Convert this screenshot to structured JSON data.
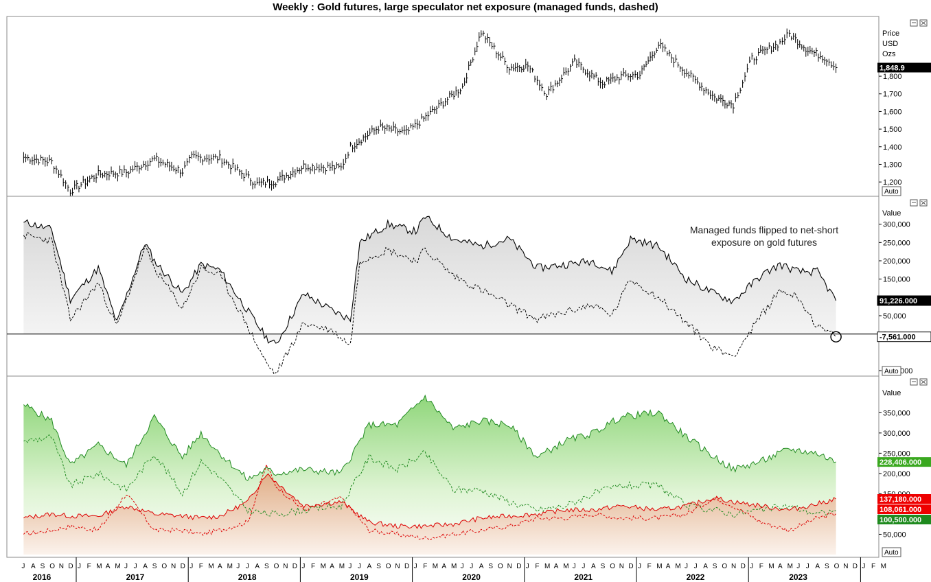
{
  "title": "Weekly : Gold futures, large speculator net exposure (managed funds, dashed)",
  "auto_label": "Auto",
  "annotation": [
    "Managed funds flipped to net-short",
    "exposure on gold futures"
  ],
  "colors": {
    "price": "#000000",
    "net": "#000000",
    "long": "#228b22",
    "short": "#dd0000",
    "zero_line": "#000000"
  },
  "time_axis": {
    "months": [
      "J",
      "A",
      "S",
      "O",
      "N",
      "D",
      "J",
      "F",
      "M",
      "A",
      "M",
      "J",
      "J",
      "A",
      "S",
      "O",
      "N",
      "D",
      "J",
      "F",
      "M",
      "A",
      "M",
      "J",
      "J",
      "A",
      "S",
      "O",
      "N",
      "D",
      "J",
      "F",
      "M",
      "A",
      "M",
      "J",
      "J",
      "A",
      "S",
      "O",
      "N",
      "D",
      "J",
      "F",
      "M",
      "A",
      "M",
      "J",
      "J",
      "A",
      "S",
      "O",
      "N",
      "D",
      "J",
      "F",
      "M",
      "A",
      "M",
      "J",
      "J",
      "A",
      "S",
      "O",
      "N",
      "D",
      "J",
      "F",
      "M",
      "A",
      "M",
      "J",
      "J",
      "A",
      "S",
      "O",
      "N",
      "D",
      "J",
      "F",
      "M",
      "A",
      "M",
      "J",
      "J",
      "A",
      "S",
      "O",
      "N",
      "D",
      "J",
      "F",
      "M"
    ],
    "years": [
      "2016",
      "2017",
      "2018",
      "2019",
      "2020",
      "2021",
      "2022",
      "2023"
    ]
  },
  "panels": {
    "price": {
      "header": [
        "Price",
        "USD",
        "Ozs"
      ],
      "ticks": [
        "1,800",
        "1,700",
        "1,600",
        "1,500",
        "1,400",
        "1,300",
        "1,200"
      ],
      "last_tag": "1,848.9"
    },
    "net": {
      "header": [
        "Value"
      ],
      "ticks": [
        "300,000",
        "250,000",
        "200,000",
        "150,000",
        "50,000",
        "0",
        "-100,000"
      ],
      "tags": [
        "91,226.000",
        "-7,561.000"
      ]
    },
    "positions": {
      "header": [
        "Value"
      ],
      "ticks": [
        "350,000",
        "300,000",
        "250,000",
        "200,000",
        "150,000",
        "50,000"
      ],
      "tags": [
        "228,406.000",
        "137,180.000",
        "108,061.000",
        "100,500.000"
      ]
    }
  },
  "chart_data": [
    {
      "type": "line",
      "title": "Weekly : Gold futures, large speculator net exposure (managed funds, dashed)",
      "x": [
        "2016-07",
        "2016-10",
        "2016-12",
        "2017-03",
        "2017-06",
        "2017-09",
        "2017-12",
        "2018-01",
        "2018-04",
        "2018-08",
        "2018-10",
        "2019-01",
        "2019-05",
        "2019-06",
        "2019-09",
        "2019-12",
        "2020-03",
        "2020-06",
        "2020-08",
        "2020-11",
        "2021-01",
        "2021-03",
        "2021-06",
        "2021-09",
        "2021-11",
        "2022-01",
        "2022-03",
        "2022-06",
        "2022-09",
        "2022-11",
        "2023-01",
        "2023-04",
        "2023-05",
        "2023-07",
        "2023-09",
        "2023-10"
      ],
      "series": [
        {
          "values": [
            1340,
            1315,
            1150,
            1245,
            1255,
            1330,
            1260,
            1340,
            1335,
            1190,
            1205,
            1290,
            1280,
            1400,
            1510,
            1480,
            1610,
            1740,
            2050,
            1850,
            1860,
            1700,
            1880,
            1760,
            1800,
            1810,
            1980,
            1820,
            1680,
            1640,
            1900,
            1990,
            2040,
            1950,
            1900,
            1848.9
          ]
        }
      ],
      "ylim": [
        1150,
        2100
      ]
    },
    {
      "type": "area",
      "x": [
        "2016-07",
        "2016-08",
        "2016-10",
        "2016-12",
        "2017-03",
        "2017-05",
        "2017-08",
        "2017-09",
        "2017-12",
        "2018-02",
        "2018-04",
        "2018-06",
        "2018-09",
        "2018-10",
        "2019-01",
        "2019-04",
        "2019-06",
        "2019-07",
        "2019-10",
        "2020-01",
        "2020-02",
        "2020-05",
        "2020-08",
        "2020-11",
        "2021-02",
        "2021-05",
        "2021-08",
        "2021-10",
        "2021-12",
        "2022-03",
        "2022-06",
        "2022-09",
        "2022-11",
        "2023-02",
        "2023-04",
        "2023-06",
        "2023-08",
        "2023-10"
      ],
      "series": [
        {
          "values": [
            305000,
            300000,
            285000,
            95000,
            180000,
            30000,
            250000,
            200000,
            110000,
            190000,
            175000,
            100000,
            -10000,
            -30000,
            110000,
            65000,
            40000,
            250000,
            300000,
            280000,
            320000,
            260000,
            240000,
            260000,
            180000,
            190000,
            200000,
            170000,
            260000,
            240000,
            150000,
            110000,
            90000,
            160000,
            190000,
            170000,
            170000,
            91226
          ]
        },
        {
          "values": [
            270000,
            265000,
            255000,
            40000,
            140000,
            20000,
            235000,
            180000,
            70000,
            180000,
            160000,
            70000,
            -80000,
            -110000,
            30000,
            10000,
            -30000,
            200000,
            230000,
            200000,
            230000,
            160000,
            120000,
            80000,
            40000,
            60000,
            80000,
            50000,
            150000,
            100000,
            30000,
            -40000,
            -60000,
            50000,
            120000,
            100000,
            20000,
            -7561
          ]
        }
      ],
      "ylim": [
        -100000,
        350000
      ]
    },
    {
      "type": "area",
      "x": [
        "2016-07",
        "2016-10",
        "2016-12",
        "2017-03",
        "2017-06",
        "2017-09",
        "2017-12",
        "2018-02",
        "2018-04",
        "2018-07",
        "2018-09",
        "2018-10",
        "2019-01",
        "2019-05",
        "2019-08",
        "2019-11",
        "2020-02",
        "2020-05",
        "2020-08",
        "2020-11",
        "2021-02",
        "2021-05",
        "2021-08",
        "2021-11",
        "2022-03",
        "2022-06",
        "2022-09",
        "2022-11",
        "2023-02",
        "2023-05",
        "2023-08",
        "2023-10"
      ],
      "series": [
        {
          "values": [
            370000,
            330000,
            220000,
            270000,
            220000,
            340000,
            240000,
            300000,
            250000,
            185000,
            210000,
            200000,
            210000,
            200000,
            320000,
            320000,
            390000,
            310000,
            330000,
            320000,
            240000,
            280000,
            300000,
            340000,
            350000,
            290000,
            240000,
            210000,
            230000,
            260000,
            250000,
            228406
          ]
        },
        {
          "values": [
            280000,
            290000,
            170000,
            200000,
            160000,
            250000,
            150000,
            230000,
            190000,
            110000,
            100000,
            100000,
            110000,
            120000,
            240000,
            210000,
            250000,
            160000,
            160000,
            130000,
            110000,
            120000,
            150000,
            170000,
            170000,
            120000,
            110000,
            100000,
            110000,
            120000,
            100000,
            108061
          ]
        },
        {
          "values": [
            90000,
            100000,
            95000,
            95000,
            120000,
            100000,
            95000,
            90000,
            95000,
            130000,
            200000,
            180000,
            120000,
            130000,
            80000,
            70000,
            70000,
            75000,
            90000,
            95000,
            100000,
            110000,
            110000,
            120000,
            110000,
            120000,
            140000,
            130000,
            120000,
            110000,
            125000,
            137180
          ]
        },
        {
          "values": [
            50000,
            60000,
            70000,
            60000,
            150000,
            60000,
            60000,
            50000,
            60000,
            80000,
            220000,
            170000,
            110000,
            140000,
            60000,
            50000,
            40000,
            50000,
            60000,
            70000,
            90000,
            90000,
            100000,
            90000,
            90000,
            100000,
            140000,
            120000,
            80000,
            60000,
            90000,
            100500
          ]
        }
      ],
      "ylim": [
        0,
        420000
      ]
    }
  ]
}
